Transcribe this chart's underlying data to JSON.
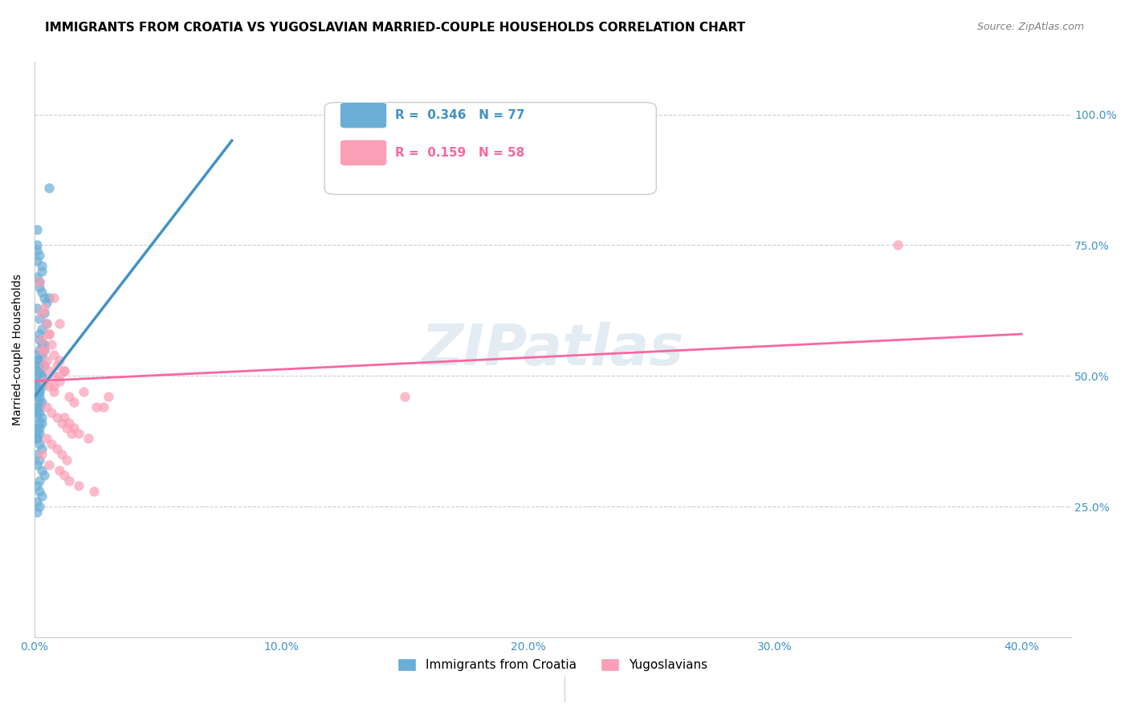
{
  "title": "IMMIGRANTS FROM CROATIA VS YUGOSLAVIAN MARRIED-COUPLE HOUSEHOLDS CORRELATION CHART",
  "source": "Source: ZipAtlas.com",
  "ylabel": "Married-couple Households",
  "yticks": [
    "25.0%",
    "50.0%",
    "75.0%",
    "100.0%"
  ],
  "ytick_vals": [
    0.25,
    0.5,
    0.75,
    1.0
  ],
  "legend1_R": "0.346",
  "legend1_N": "77",
  "legend2_R": "0.159",
  "legend2_N": "58",
  "legend_label1": "Immigrants from Croatia",
  "legend_label2": "Yugoslavians",
  "blue_color": "#6baed6",
  "pink_color": "#fa9fb5",
  "line_blue": "#4292c6",
  "line_pink": "#f768a1",
  "watermark": "ZIPatlas",
  "blue_scatter_x": [
    0.002,
    0.001,
    0.001,
    0.003,
    0.002,
    0.003,
    0.004,
    0.005,
    0.002,
    0.001,
    0.002,
    0.003,
    0.001,
    0.002,
    0.004,
    0.001,
    0.002,
    0.003,
    0.002,
    0.001,
    0.002,
    0.003,
    0.004,
    0.006,
    0.005,
    0.003,
    0.002,
    0.001,
    0.001,
    0.002,
    0.003,
    0.002,
    0.004,
    0.003,
    0.002,
    0.001,
    0.003,
    0.002,
    0.001,
    0.002,
    0.001,
    0.002,
    0.003,
    0.001,
    0.002,
    0.001,
    0.003,
    0.004,
    0.002,
    0.001,
    0.002,
    0.003,
    0.001,
    0.006,
    0.002,
    0.001,
    0.002,
    0.001,
    0.003,
    0.002,
    0.001,
    0.002,
    0.001,
    0.002,
    0.001,
    0.003,
    0.002,
    0.001,
    0.004,
    0.001,
    0.002,
    0.001,
    0.003,
    0.002,
    0.001,
    0.002,
    0.001
  ],
  "blue_scatter_y": [
    0.52,
    0.78,
    0.74,
    0.7,
    0.68,
    0.66,
    0.62,
    0.6,
    0.58,
    0.75,
    0.73,
    0.71,
    0.69,
    0.67,
    0.65,
    0.63,
    0.61,
    0.59,
    0.57,
    0.72,
    0.51,
    0.5,
    0.55,
    0.86,
    0.64,
    0.54,
    0.53,
    0.49,
    0.48,
    0.47,
    0.56,
    0.46,
    0.52,
    0.45,
    0.44,
    0.43,
    0.42,
    0.41,
    0.4,
    0.39,
    0.38,
    0.37,
    0.36,
    0.35,
    0.34,
    0.33,
    0.32,
    0.31,
    0.3,
    0.29,
    0.28,
    0.27,
    0.26,
    0.65,
    0.55,
    0.54,
    0.5,
    0.53,
    0.48,
    0.47,
    0.46,
    0.45,
    0.44,
    0.43,
    0.42,
    0.41,
    0.4,
    0.39,
    0.56,
    0.38,
    0.52,
    0.51,
    0.5,
    0.49,
    0.48,
    0.25,
    0.24
  ],
  "pink_scatter_x": [
    0.002,
    0.003,
    0.005,
    0.004,
    0.006,
    0.008,
    0.01,
    0.003,
    0.004,
    0.006,
    0.007,
    0.005,
    0.008,
    0.009,
    0.01,
    0.012,
    0.004,
    0.006,
    0.008,
    0.01,
    0.012,
    0.014,
    0.016,
    0.003,
    0.005,
    0.007,
    0.009,
    0.011,
    0.013,
    0.015,
    0.005,
    0.007,
    0.009,
    0.011,
    0.013,
    0.02,
    0.025,
    0.03,
    0.35,
    0.006,
    0.008,
    0.01,
    0.012,
    0.014,
    0.016,
    0.018,
    0.022,
    0.028,
    0.004,
    0.006,
    0.008,
    0.01,
    0.012,
    0.014,
    0.018,
    0.024,
    0.15,
    0.003
  ],
  "pink_scatter_y": [
    0.68,
    0.62,
    0.6,
    0.63,
    0.58,
    0.65,
    0.6,
    0.57,
    0.55,
    0.58,
    0.56,
    0.53,
    0.54,
    0.52,
    0.5,
    0.51,
    0.49,
    0.48,
    0.47,
    0.53,
    0.51,
    0.46,
    0.45,
    0.55,
    0.44,
    0.43,
    0.42,
    0.41,
    0.4,
    0.39,
    0.38,
    0.37,
    0.36,
    0.35,
    0.34,
    0.47,
    0.44,
    0.46,
    0.75,
    0.33,
    0.48,
    0.49,
    0.42,
    0.41,
    0.4,
    0.39,
    0.38,
    0.44,
    0.52,
    0.51,
    0.5,
    0.32,
    0.31,
    0.3,
    0.29,
    0.28,
    0.46,
    0.35
  ],
  "blue_line_x": [
    0.0,
    0.08
  ],
  "blue_line_y": [
    0.46,
    0.95
  ],
  "pink_line_x": [
    0.0,
    0.4
  ],
  "pink_line_y": [
    0.49,
    0.58
  ],
  "xlim": [
    0.0,
    0.42
  ],
  "ylim": [
    0.0,
    1.1
  ],
  "title_fontsize": 11,
  "source_fontsize": 9,
  "label_fontsize": 10,
  "tick_fontsize": 10
}
